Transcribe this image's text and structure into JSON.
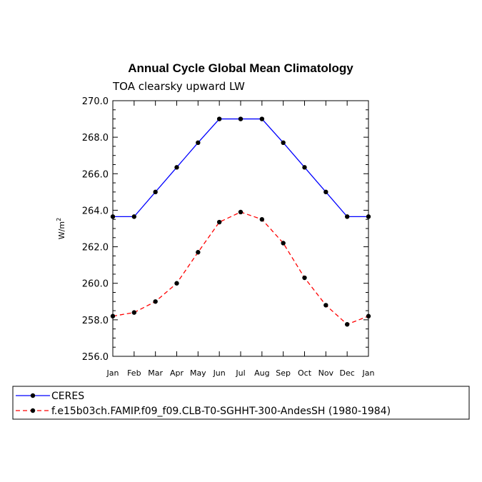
{
  "chart_data": {
    "type": "line",
    "title": "Annual Cycle Global Mean Climatology",
    "subtitle": "TOA clearsky upward LW",
    "ylabel": "W/m",
    "ylabel_sup": "2",
    "xlabel": "",
    "categories": [
      "Jan",
      "Feb",
      "Mar",
      "Apr",
      "May",
      "Jun",
      "Jul",
      "Aug",
      "Sep",
      "Oct",
      "Nov",
      "Dec",
      "Jan"
    ],
    "ylim": [
      256.0,
      270.0
    ],
    "yticks": [
      "256.0",
      "258.0",
      "260.0",
      "262.0",
      "264.0",
      "266.0",
      "268.0",
      "270.0"
    ],
    "grid": false,
    "legend_position": "bottom",
    "series": [
      {
        "name": "CERES",
        "color": "#0000ff",
        "dash": "solid",
        "values": [
          263.65,
          263.65,
          265.0,
          266.35,
          267.7,
          269.0,
          269.0,
          269.0,
          267.7,
          266.35,
          265.0,
          263.65,
          263.65
        ]
      },
      {
        "name": "f.e15b03ch.FAMIP.f09_f09.CLB-T0-SGHHT-300-AndesSH (1980-1984)",
        "color": "#ff0000",
        "dash": "dashed",
        "values": [
          258.2,
          258.4,
          259.0,
          260.0,
          261.7,
          263.35,
          263.9,
          263.5,
          262.2,
          260.3,
          258.8,
          257.75,
          258.2
        ]
      }
    ]
  }
}
